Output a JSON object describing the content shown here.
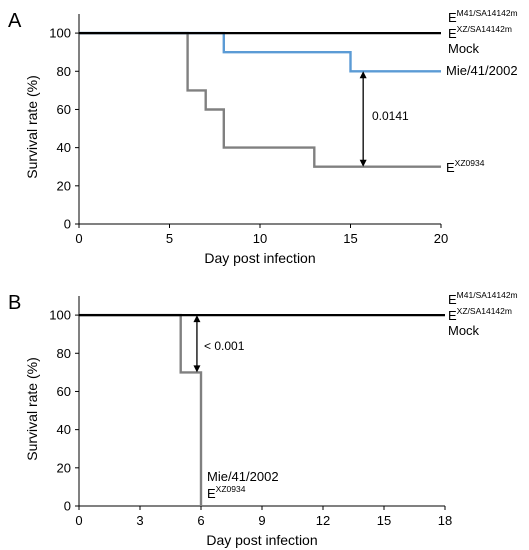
{
  "colors": {
    "axis": "#000000",
    "mock_line": "#000000",
    "mie_line": "#5B9BD5",
    "exz_line": "#808080",
    "arrow": "#000000"
  },
  "chart_data": [
    {
      "panel_label": "A",
      "type": "line",
      "step": true,
      "xlabel": "Day post infection",
      "ylabel": "Survival rate (%)",
      "xlim": [
        0,
        20
      ],
      "ylim": [
        0,
        110
      ],
      "xticks": [
        0,
        5,
        10,
        15,
        20
      ],
      "yticks": [
        0,
        20,
        40,
        60,
        80,
        100
      ],
      "grid": false,
      "series": [
        {
          "name": "Mock",
          "x": [
            0,
            20
          ],
          "y": [
            100,
            100
          ],
          "color": "#000000"
        },
        {
          "name": "Mie/41/2002",
          "x": [
            0,
            8,
            15,
            20
          ],
          "y": [
            100,
            90,
            80,
            80
          ],
          "color": "#5B9BD5"
        },
        {
          "name": "E XZ0934",
          "x": [
            0,
            6,
            7,
            8,
            13,
            20
          ],
          "y": [
            100,
            70,
            60,
            40,
            30,
            30
          ],
          "color": "#808080"
        }
      ],
      "annotations": [
        {
          "text": "0.0141",
          "x": 15.7,
          "y_from": 80,
          "y_to": 30
        }
      ],
      "labels": {
        "m41": {
          "base": "E",
          "sup": "M41/SA14142m"
        },
        "xz": {
          "base": "E",
          "sup": "XZ/SA14142m"
        },
        "mock": "Mock",
        "mie": "Mie/41/2002",
        "exz": {
          "base": "E",
          "sup": "XZ0934"
        }
      }
    },
    {
      "panel_label": "B",
      "type": "line",
      "step": true,
      "xlabel": "Day post infection",
      "ylabel": "Survival rate (%)",
      "xlim": [
        0,
        18
      ],
      "ylim": [
        0,
        110
      ],
      "xticks": [
        0,
        3,
        6,
        9,
        12,
        15,
        18
      ],
      "yticks": [
        0,
        20,
        40,
        60,
        80,
        100
      ],
      "grid": false,
      "series": [
        {
          "name": "Mock",
          "x": [
            0,
            18
          ],
          "y": [
            100,
            100
          ],
          "color": "#000000"
        },
        {
          "name": "Mie/41/2002 / E XZ0934",
          "x": [
            0,
            5,
            6
          ],
          "y": [
            100,
            70,
            0
          ],
          "color": "#808080"
        }
      ],
      "annotations": [
        {
          "text": "< 0.001",
          "x": 5.8,
          "y_from": 100,
          "y_to": 70
        }
      ],
      "labels": {
        "m41": {
          "base": "E",
          "sup": "M41/SA14142m"
        },
        "xz": {
          "base": "E",
          "sup": "XZ/SA14142m"
        },
        "mock": "Mock",
        "mie": "Mie/41/2002",
        "exz": {
          "base": "E",
          "sup": "XZ0934"
        }
      }
    }
  ]
}
